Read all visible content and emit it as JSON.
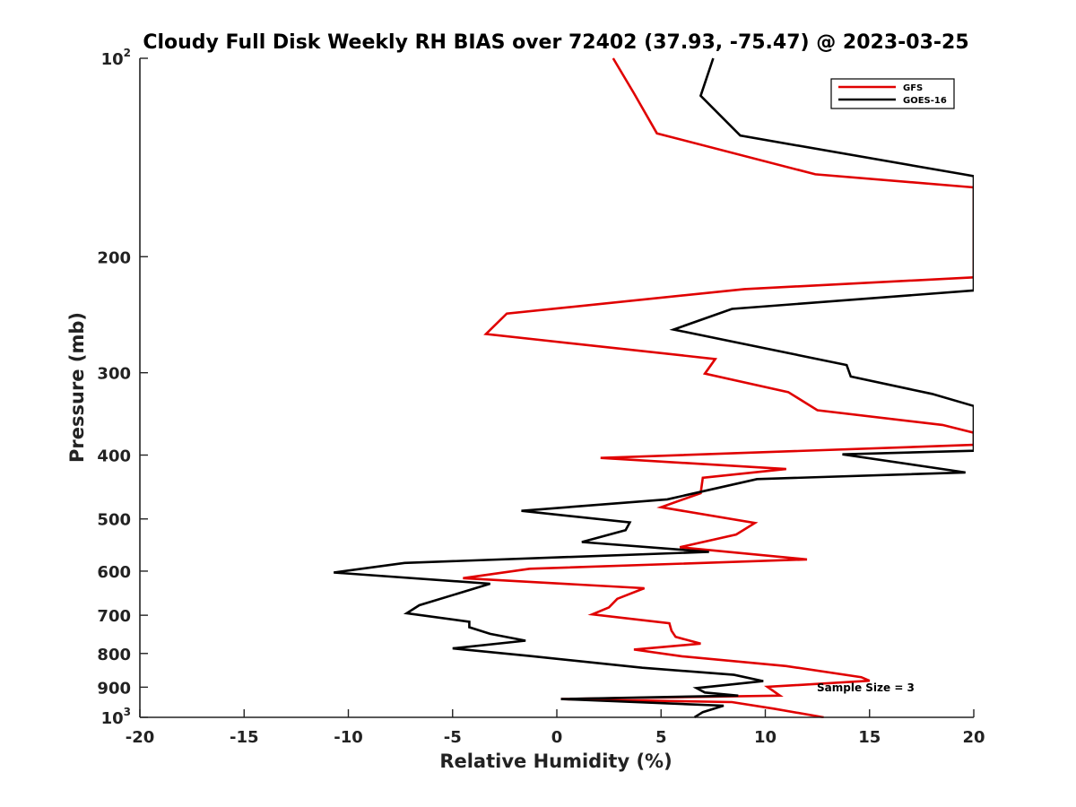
{
  "chart_data": {
    "type": "line",
    "title": "Cloudy Full Disk Weekly RH BIAS over 72402 (37.93, -75.47) @ 2023-03-25",
    "xlabel": "Relative Humidity (%)",
    "ylabel": "Pressure (mb)",
    "xlim": [
      -20,
      20
    ],
    "ylim": [
      100,
      1000
    ],
    "y_scale": "log",
    "y_reversed": true,
    "grid": false,
    "legend_position": "top-right",
    "x_ticks": [
      "-20",
      "-15",
      "-10",
      "-5",
      "0",
      "5",
      "10",
      "15",
      "20"
    ],
    "y_ticks": [
      {
        "value": 100,
        "base": "10",
        "exp": "2"
      },
      {
        "value": 200,
        "base": "200",
        "exp": ""
      },
      {
        "value": 300,
        "base": "300",
        "exp": ""
      },
      {
        "value": 400,
        "base": "400",
        "exp": ""
      },
      {
        "value": 500,
        "base": "500",
        "exp": ""
      },
      {
        "value": 600,
        "base": "600",
        "exp": ""
      },
      {
        "value": 700,
        "base": "700",
        "exp": ""
      },
      {
        "value": 800,
        "base": "800",
        "exp": ""
      },
      {
        "value": 900,
        "base": "900",
        "exp": ""
      },
      {
        "value": 1000,
        "base": "10",
        "exp": "3"
      }
    ],
    "annotation": "Sample Size = 3",
    "series": [
      {
        "name": "GFS",
        "color": "#e00000",
        "points": [
          [
            2.7,
            100
          ],
          [
            3.7,
            113
          ],
          [
            4.8,
            130
          ],
          [
            12.4,
            150
          ],
          [
            20,
            157
          ],
          [
            20,
            215
          ],
          [
            9.0,
            224
          ],
          [
            -2.4,
            244
          ],
          [
            -3.4,
            262
          ],
          [
            7.6,
            286
          ],
          [
            7.1,
            301
          ],
          [
            11.1,
            321
          ],
          [
            12.5,
            342
          ],
          [
            18.5,
            360
          ],
          [
            20,
            370
          ],
          [
            20,
            386
          ],
          [
            2.1,
            404
          ],
          [
            11.0,
            420
          ],
          [
            7.0,
            433
          ],
          [
            6.9,
            457
          ],
          [
            5.0,
            480
          ],
          [
            9.5,
            507
          ],
          [
            8.6,
            528
          ],
          [
            5.9,
            552
          ],
          [
            12.0,
            576
          ],
          [
            -1.3,
            595
          ],
          [
            -4.5,
            615
          ],
          [
            4.2,
            637
          ],
          [
            2.9,
            661
          ],
          [
            2.5,
            681
          ],
          [
            1.7,
            698
          ],
          [
            5.4,
            720
          ],
          [
            5.5,
            739
          ],
          [
            5.7,
            755
          ],
          [
            6.9,
            773
          ],
          [
            3.7,
            789
          ],
          [
            6.0,
            808
          ],
          [
            11.0,
            836
          ],
          [
            14.6,
            869
          ],
          [
            15.0,
            880
          ],
          [
            10.1,
            899
          ],
          [
            10.7,
            927
          ],
          [
            0.2,
            938
          ],
          [
            8.4,
            948
          ],
          [
            10.4,
            970
          ],
          [
            12.8,
            1000
          ]
        ]
      },
      {
        "name": "GOES-16",
        "color": "#000000",
        "points": [
          [
            7.5,
            100
          ],
          [
            6.9,
            114
          ],
          [
            8.8,
            131
          ],
          [
            19.5,
            150
          ],
          [
            20,
            151
          ],
          [
            20,
            225
          ],
          [
            8.4,
            240
          ],
          [
            5.6,
            258
          ],
          [
            13.9,
            292
          ],
          [
            14.1,
            304
          ],
          [
            18.0,
            323
          ],
          [
            20,
            337
          ],
          [
            20,
            394
          ],
          [
            13.7,
            399
          ],
          [
            19.6,
            425
          ],
          [
            9.6,
            435
          ],
          [
            5.3,
            467
          ],
          [
            -1.7,
            486
          ],
          [
            3.5,
            506
          ],
          [
            3.3,
            520
          ],
          [
            1.2,
            542
          ],
          [
            7.3,
            561
          ],
          [
            -7.3,
            583
          ],
          [
            -10.7,
            603
          ],
          [
            -3.2,
            627
          ],
          [
            -6.6,
            676
          ],
          [
            -7.2,
            695
          ],
          [
            -4.2,
            716
          ],
          [
            -4.2,
            730
          ],
          [
            -3.2,
            747
          ],
          [
            -1.5,
            765
          ],
          [
            -5.0,
            786
          ],
          [
            -1.3,
            807
          ],
          [
            4.1,
            841
          ],
          [
            8.5,
            862
          ],
          [
            9.9,
            881
          ],
          [
            6.7,
            903
          ],
          [
            7.1,
            917
          ],
          [
            8.7,
            927
          ],
          [
            0.2,
            938
          ],
          [
            8.0,
            960
          ],
          [
            7.0,
            982
          ],
          [
            6.6,
            1000
          ]
        ]
      }
    ]
  }
}
